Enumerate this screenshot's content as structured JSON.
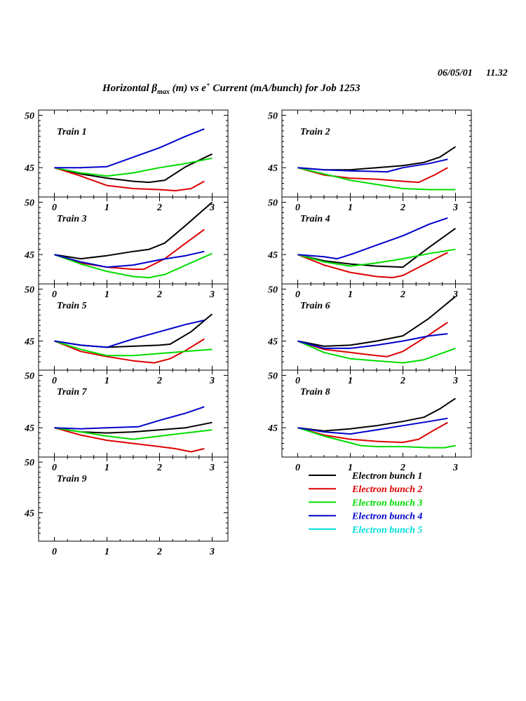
{
  "header": {
    "date": "06/05/01",
    "time": "11.32",
    "title_part1": "Horizontal β",
    "title_sub": "max",
    "title_part2": " (m) vs e",
    "title_sup": "+",
    "title_part3": " Current (mA/bunch) for Job 1253"
  },
  "colors": {
    "Electron bunch 1": "#000000",
    "Electron bunch 2": "#dd0000",
    "Electron bunch 3": "#00dd00",
    "Electron bunch 4": "#0000cc",
    "Electron bunch 5": "#00dddd"
  },
  "legend": [
    {
      "label": "Electron bunch 1",
      "color": "#000000"
    },
    {
      "label": "Electron bunch 2",
      "color": "#dd0000"
    },
    {
      "label": "Electron bunch 3",
      "color": "#00dd00"
    },
    {
      "label": "Electron bunch 4",
      "color": "#0000cc"
    },
    {
      "label": "Electron bunch 5",
      "color": "#00dddd"
    }
  ],
  "chart_data": [
    {
      "type": "line",
      "title": "Train 1",
      "xlim": [
        -0.3,
        3.3
      ],
      "ylim": [
        42.2,
        50.5
      ],
      "y_ticks": [
        45,
        50
      ],
      "x_ticks": [
        0,
        1,
        2,
        3
      ],
      "series": [
        {
          "name": "Electron bunch 1",
          "x": [
            0,
            0.5,
            1,
            1.5,
            1.8,
            2.1,
            2.5,
            3
          ],
          "y": [
            45,
            44.4,
            44.0,
            43.7,
            43.6,
            43.8,
            45.1,
            46.3
          ]
        },
        {
          "name": "Electron bunch 2",
          "x": [
            0,
            0.5,
            1,
            1.5,
            2,
            2.3,
            2.6,
            2.85
          ],
          "y": [
            45,
            44.2,
            43.3,
            43.0,
            42.9,
            42.8,
            43.0,
            43.7
          ]
        },
        {
          "name": "Electron bunch 3",
          "x": [
            0,
            0.5,
            1,
            1.5,
            2,
            2.5,
            3
          ],
          "y": [
            45,
            44.5,
            44.2,
            44.5,
            45.0,
            45.4,
            45.9
          ]
        },
        {
          "name": "Electron bunch 4",
          "x": [
            0,
            0.5,
            1,
            1.5,
            2,
            2.5,
            2.85
          ],
          "y": [
            45,
            45.0,
            45.1,
            46.0,
            46.9,
            48.0,
            48.7
          ]
        }
      ]
    },
    {
      "type": "line",
      "title": "Train 2",
      "xlim": [
        -0.3,
        3.3
      ],
      "ylim": [
        42.2,
        50.5
      ],
      "y_ticks": [
        45,
        50
      ],
      "x_ticks": [
        0,
        1,
        2,
        3
      ],
      "series": [
        {
          "name": "Electron bunch 1",
          "x": [
            0,
            0.5,
            1,
            1.5,
            2,
            2.4,
            2.7,
            3
          ],
          "y": [
            45,
            44.8,
            44.8,
            45.0,
            45.2,
            45.5,
            46.0,
            47.0
          ]
        },
        {
          "name": "Electron bunch 2",
          "x": [
            0,
            0.5,
            1,
            1.5,
            2,
            2.3,
            2.6,
            2.85
          ],
          "y": [
            45,
            44.3,
            44.0,
            43.9,
            43.7,
            43.6,
            44.3,
            45.0
          ]
        },
        {
          "name": "Electron bunch 3",
          "x": [
            0,
            0.5,
            1,
            1.5,
            2,
            2.5,
            3
          ],
          "y": [
            45,
            44.4,
            43.8,
            43.4,
            43.0,
            42.9,
            42.9
          ]
        },
        {
          "name": "Electron bunch 4",
          "x": [
            0,
            0.5,
            1,
            1.7,
            2,
            2.5,
            2.85
          ],
          "y": [
            45,
            44.8,
            44.7,
            44.6,
            45.0,
            45.4,
            45.8
          ]
        }
      ]
    },
    {
      "type": "line",
      "title": "Train 3",
      "xlim": [
        -0.3,
        3.3
      ],
      "ylim": [
        42.2,
        50.5
      ],
      "y_ticks": [
        45,
        50
      ],
      "x_ticks": [
        0,
        1,
        2,
        3
      ],
      "series": [
        {
          "name": "Electron bunch 1",
          "x": [
            0,
            0.5,
            1,
            1.5,
            1.8,
            2.1,
            2.5,
            3
          ],
          "y": [
            45,
            44.6,
            44.9,
            45.3,
            45.5,
            46.1,
            47.8,
            50.0
          ]
        },
        {
          "name": "Electron bunch 2",
          "x": [
            0,
            0.5,
            1,
            1.5,
            1.7,
            2.1,
            2.5,
            2.85
          ],
          "y": [
            45,
            44.2,
            43.8,
            43.6,
            43.6,
            44.6,
            46.1,
            47.4
          ]
        },
        {
          "name": "Electron bunch 3",
          "x": [
            0,
            0.5,
            1,
            1.5,
            1.8,
            2.1,
            2.5,
            3
          ],
          "y": [
            45,
            44.1,
            43.4,
            42.9,
            42.8,
            43.1,
            44.0,
            45.1
          ]
        },
        {
          "name": "Electron bunch 4",
          "x": [
            0,
            0.5,
            1,
            1.5,
            2,
            2.5,
            2.85
          ],
          "y": [
            45,
            44.3,
            43.8,
            44.0,
            44.5,
            44.9,
            45.3
          ]
        }
      ]
    },
    {
      "type": "line",
      "title": "Train 4",
      "xlim": [
        -0.3,
        3.3
      ],
      "ylim": [
        42.2,
        50.5
      ],
      "y_ticks": [
        45,
        50
      ],
      "x_ticks": [
        0,
        1,
        2,
        3
      ],
      "series": [
        {
          "name": "Electron bunch 1",
          "x": [
            0,
            0.5,
            1,
            1.5,
            2,
            2.5,
            3
          ],
          "y": [
            45,
            44.4,
            44.1,
            43.9,
            43.8,
            45.7,
            47.5
          ]
        },
        {
          "name": "Electron bunch 2",
          "x": [
            0,
            0.5,
            1,
            1.5,
            1.8,
            2,
            2.5,
            2.85
          ],
          "y": [
            45,
            44.0,
            43.3,
            42.9,
            42.8,
            43.0,
            44.3,
            45.2
          ]
        },
        {
          "name": "Electron bunch 3",
          "x": [
            0,
            0.5,
            1,
            1.5,
            2,
            2.5,
            3
          ],
          "y": [
            45,
            44.3,
            43.9,
            44.2,
            44.6,
            45.1,
            45.5
          ]
        },
        {
          "name": "Electron bunch 4",
          "x": [
            0,
            0.5,
            0.75,
            1,
            1.5,
            2,
            2.5,
            2.85
          ],
          "y": [
            45,
            44.8,
            44.6,
            45.0,
            45.9,
            46.8,
            47.9,
            48.5
          ]
        }
      ]
    },
    {
      "type": "line",
      "title": "Train 5",
      "xlim": [
        -0.3,
        3.3
      ],
      "ylim": [
        42.2,
        50.5
      ],
      "y_ticks": [
        45,
        50
      ],
      "x_ticks": [
        0,
        1,
        2,
        3
      ],
      "series": [
        {
          "name": "Electron bunch 1",
          "x": [
            0,
            0.5,
            1,
            1.5,
            2,
            2.2,
            2.6,
            3
          ],
          "y": [
            45,
            44.6,
            44.4,
            44.5,
            44.6,
            44.7,
            45.9,
            47.6
          ]
        },
        {
          "name": "Electron bunch 2",
          "x": [
            0,
            0.5,
            1,
            1.5,
            1.9,
            2.2,
            2.5,
            2.85
          ],
          "y": [
            45,
            44.0,
            43.5,
            43.1,
            42.9,
            43.3,
            44.1,
            45.2
          ]
        },
        {
          "name": "Electron bunch 3",
          "x": [
            0,
            0.5,
            1,
            1.5,
            2,
            2.5,
            3
          ],
          "y": [
            45,
            44.2,
            43.6,
            43.6,
            43.8,
            44.0,
            44.2
          ]
        },
        {
          "name": "Electron bunch 4",
          "x": [
            0,
            0.5,
            1,
            1.5,
            2,
            2.5,
            2.85
          ],
          "y": [
            45,
            44.6,
            44.4,
            45.2,
            45.9,
            46.6,
            47.0
          ]
        }
      ]
    },
    {
      "type": "line",
      "title": "Train 6",
      "xlim": [
        -0.3,
        3.3
      ],
      "ylim": [
        42.2,
        50.5
      ],
      "y_ticks": [
        45,
        50
      ],
      "x_ticks": [
        0,
        1,
        2,
        3
      ],
      "series": [
        {
          "name": "Electron bunch 1",
          "x": [
            0,
            0.5,
            1,
            1.5,
            2,
            2.5,
            3
          ],
          "y": [
            45,
            44.5,
            44.6,
            45.0,
            45.5,
            47.2,
            49.3
          ]
        },
        {
          "name": "Electron bunch 2",
          "x": [
            0,
            0.5,
            1,
            1.5,
            1.7,
            2,
            2.5,
            2.85
          ],
          "y": [
            45,
            44.2,
            43.9,
            43.6,
            43.5,
            44.0,
            45.6,
            46.8
          ]
        },
        {
          "name": "Electron bunch 3",
          "x": [
            0,
            0.5,
            1,
            1.5,
            2,
            2.4,
            3
          ],
          "y": [
            45,
            43.9,
            43.3,
            43.1,
            42.9,
            43.2,
            44.3
          ]
        },
        {
          "name": "Electron bunch 4",
          "x": [
            0,
            0.5,
            1,
            1.5,
            2,
            2.5,
            2.85
          ],
          "y": [
            45,
            44.3,
            44.3,
            44.6,
            45.0,
            45.5,
            45.7
          ]
        }
      ]
    },
    {
      "type": "line",
      "title": "Train 7",
      "xlim": [
        -0.3,
        3.3
      ],
      "ylim": [
        42.2,
        50.5
      ],
      "y_ticks": [
        45,
        50
      ],
      "x_ticks": [
        0,
        1,
        2,
        3
      ],
      "series": [
        {
          "name": "Electron bunch 1",
          "x": [
            0,
            0.5,
            1,
            1.5,
            2,
            2.5,
            3
          ],
          "y": [
            45,
            44.6,
            44.5,
            44.6,
            44.8,
            45.0,
            45.5
          ]
        },
        {
          "name": "Electron bunch 2",
          "x": [
            0,
            0.5,
            1,
            1.5,
            2,
            2.3,
            2.6,
            2.85
          ],
          "y": [
            45,
            44.3,
            43.8,
            43.5,
            43.2,
            43.0,
            42.7,
            43.0
          ]
        },
        {
          "name": "Electron bunch 3",
          "x": [
            0,
            0.5,
            1,
            1.5,
            2,
            2.5,
            3
          ],
          "y": [
            45,
            44.6,
            44.2,
            43.9,
            44.2,
            44.5,
            44.8
          ]
        },
        {
          "name": "Electron bunch 4",
          "x": [
            0,
            0.5,
            1,
            1.6,
            2,
            2.5,
            2.85
          ],
          "y": [
            45,
            44.9,
            45.0,
            45.1,
            45.7,
            46.4,
            47.0
          ]
        }
      ]
    },
    {
      "type": "line",
      "title": "Train 8",
      "xlim": [
        -0.3,
        3.3
      ],
      "ylim": [
        42.2,
        50.5
      ],
      "y_ticks": [
        45,
        50
      ],
      "x_ticks": [
        0,
        1,
        2,
        3
      ],
      "series": [
        {
          "name": "Electron bunch 1",
          "x": [
            0,
            0.5,
            1,
            1.5,
            2,
            2.4,
            2.7,
            3
          ],
          "y": [
            45,
            44.7,
            44.9,
            45.2,
            45.6,
            46.0,
            46.8,
            47.8
          ]
        },
        {
          "name": "Electron bunch 2",
          "x": [
            0,
            0.5,
            1,
            1.5,
            2,
            2.3,
            2.6,
            2.85
          ],
          "y": [
            45,
            44.3,
            43.9,
            43.7,
            43.6,
            43.9,
            44.8,
            45.5
          ]
        },
        {
          "name": "Electron bunch 3",
          "x": [
            0,
            0.5,
            1.2,
            1.5,
            2,
            2.5,
            2.8,
            3
          ],
          "y": [
            45,
            44.2,
            43.3,
            43.2,
            43.2,
            43.1,
            43.1,
            43.3
          ]
        },
        {
          "name": "Electron bunch 4",
          "x": [
            0,
            0.5,
            1,
            1.5,
            2,
            2.5,
            2.85
          ],
          "y": [
            45,
            44.6,
            44.4,
            44.8,
            45.2,
            45.6,
            45.9
          ]
        }
      ]
    },
    {
      "type": "line",
      "title": "Train 9",
      "xlim": [
        -0.3,
        3.3
      ],
      "ylim": [
        42.2,
        50.5
      ],
      "y_ticks": [
        45,
        50
      ],
      "x_ticks": [
        0,
        1,
        2,
        3
      ],
      "series": []
    }
  ]
}
